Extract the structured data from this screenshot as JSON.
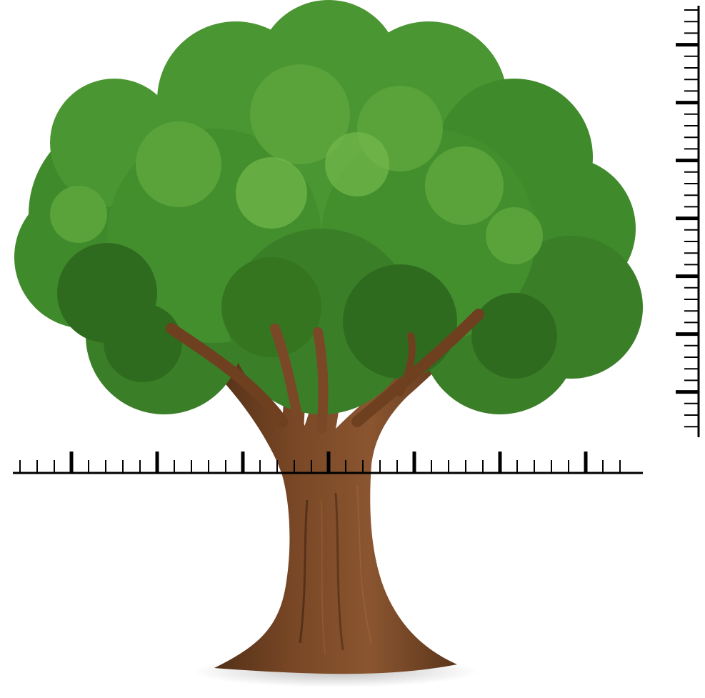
{
  "scene": {
    "subject": "tree-illustration",
    "colors": {
      "background": "#ffffff",
      "foliage_dark": "#2f6b1f",
      "foliage_mid": "#3f8a2b",
      "foliage_light": "#5aa33a",
      "foliage_highlight": "#74b84c",
      "trunk_dark": "#4a2a14",
      "trunk_mid": "#6e4020",
      "trunk_light": "#8a5530",
      "ruler": "#000000"
    }
  },
  "horizontal_ruler": {
    "labels": [],
    "major_tick_count": 7,
    "minor_ticks_per_major": 4
  },
  "vertical_ruler": {
    "labels": [],
    "major_tick_count": 7,
    "minor_ticks_per_major": 4
  }
}
